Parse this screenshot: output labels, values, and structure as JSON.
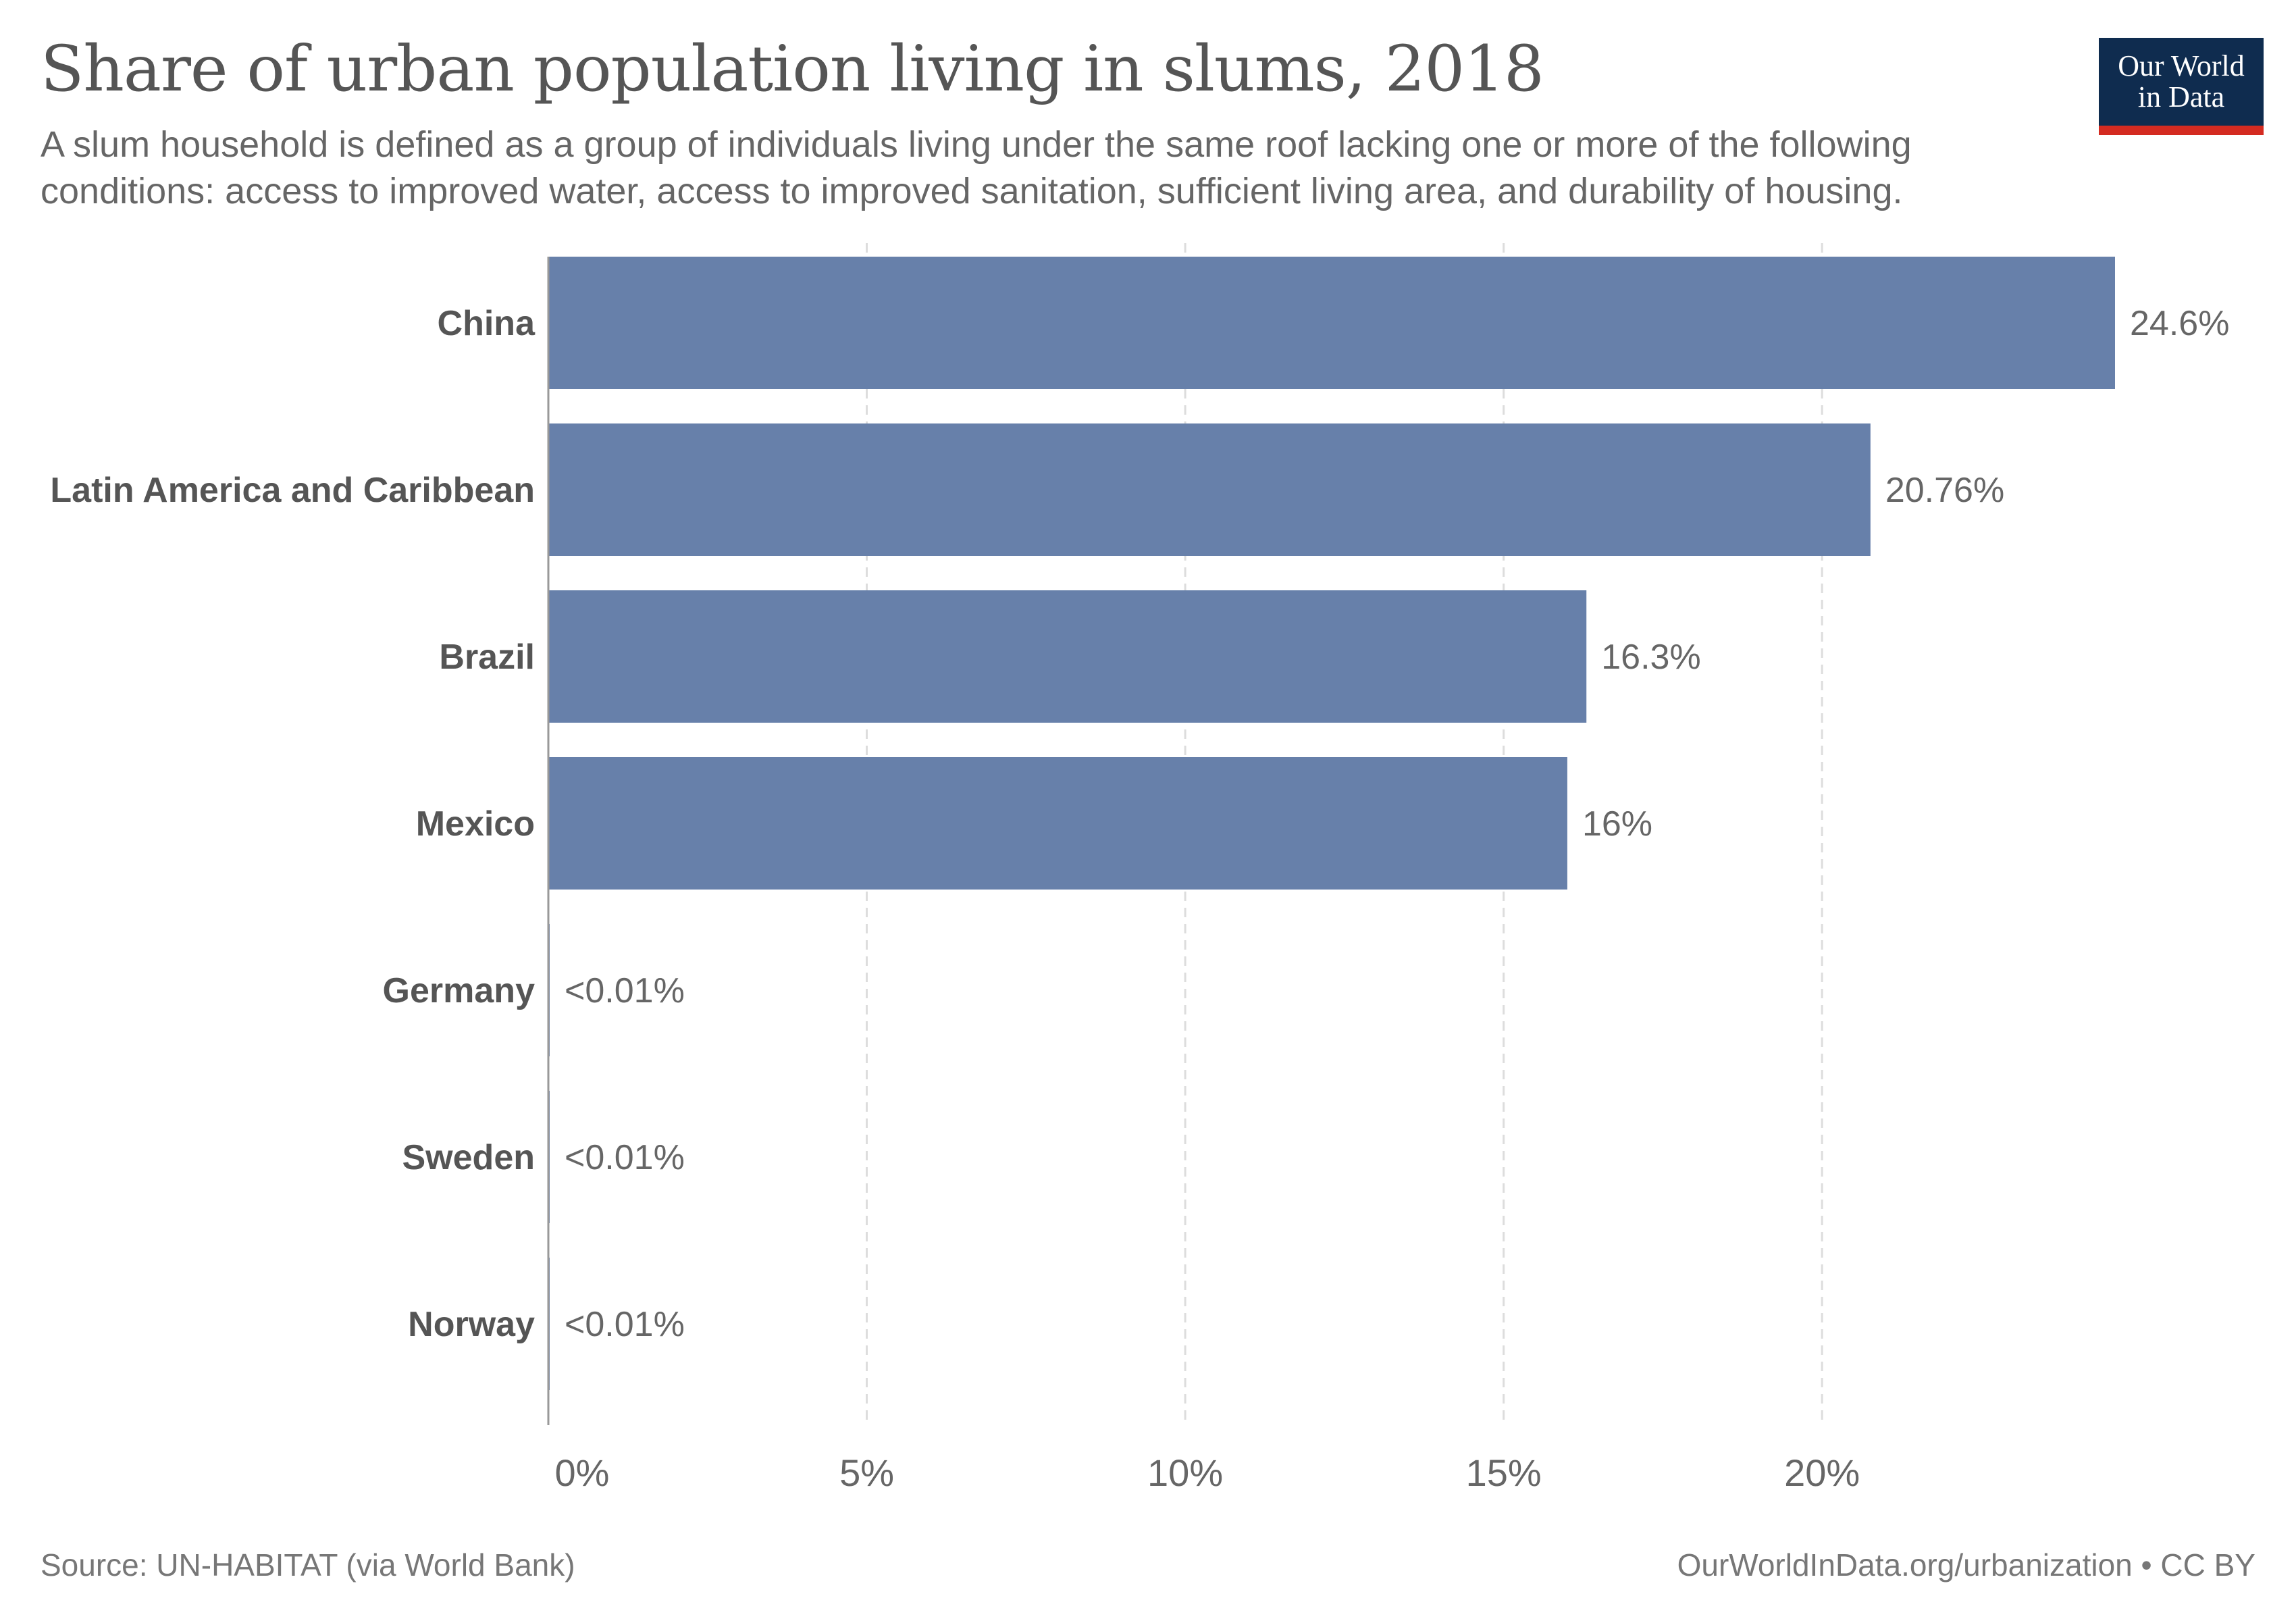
{
  "header": {
    "title": "Share of urban population living in slums, 2018",
    "subtitle": "A slum household is defined as a group of individuals living under the same roof lacking one or more of the following conditions: access to improved water, access to improved sanitation, sufficient living area, and durability of housing."
  },
  "logo": {
    "line1": "Our World",
    "line2": "in Data"
  },
  "footer": {
    "source": "Source: UN-HABITAT (via World Bank)",
    "url": "OurWorldInData.org/urbanization • CC BY"
  },
  "colors": {
    "bar": "#6780aa",
    "grid": "#dddddd",
    "axis": "#999999",
    "label": "#555555",
    "value_label": "#666666",
    "logo_bg": "#0f2c4f",
    "logo_accent": "#d42b21"
  },
  "chart_data": {
    "type": "bar",
    "orientation": "horizontal",
    "categories": [
      "China",
      "Latin America and Caribbean",
      "Brazil",
      "Mexico",
      "Germany",
      "Sweden",
      "Norway"
    ],
    "values": [
      24.6,
      20.76,
      16.3,
      16,
      0.01,
      0.01,
      0.01
    ],
    "value_labels": [
      "24.6%",
      "20.76%",
      "16.3%",
      "16%",
      "<0.01%",
      "<0.01%",
      "<0.01%"
    ],
    "xticks": [
      0,
      5,
      10,
      15,
      20
    ],
    "xtick_labels": [
      "0%",
      "5%",
      "10%",
      "15%",
      "20%"
    ],
    "xlim": [
      0,
      24.6
    ],
    "grid": "vertical dashed",
    "title": "Share of urban population living in slums, 2018",
    "xlabel": "",
    "ylabel": ""
  }
}
